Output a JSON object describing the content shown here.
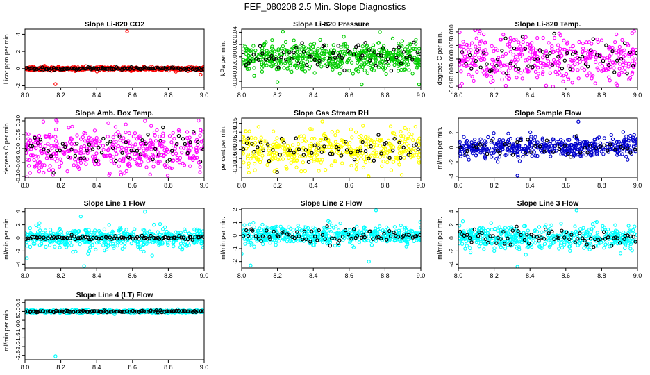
{
  "figure": {
    "title": "FEF_080208  2.5 Min. Slope Diagnostics"
  },
  "chart_data": [
    {
      "type": "scatter",
      "title": "Slope Li-820 CO2",
      "ylabel": "Licor ppm per min.",
      "color": "#ff0000",
      "xlim": [
        8.0,
        9.0
      ],
      "ylim": [
        -2.2,
        4.6
      ],
      "xticks": [
        8.0,
        8.2,
        8.4,
        8.6,
        8.8,
        9.0
      ],
      "xtick_labels": [
        "8.0",
        "8.2",
        "8.4",
        "8.6",
        "8.8",
        "9.0"
      ],
      "yticks": [
        -2,
        0,
        2,
        4
      ],
      "ytick_labels": [
        "-2",
        "0",
        "2",
        "4"
      ],
      "n_points": 450,
      "spread": 0.1,
      "n_black": 110,
      "black_spread": 0.07,
      "outliers": [
        [
          8.57,
          4.35
        ],
        [
          8.17,
          -1.8
        ],
        [
          8.98,
          -0.7
        ]
      ]
    },
    {
      "type": "scatter",
      "title": "Slope Li-820 Pressure",
      "ylabel": "kPa per min.",
      "color": "#00cc00",
      "xlim": [
        8.0,
        9.0
      ],
      "ylim": [
        -0.05,
        0.045
      ],
      "xticks": [
        8.0,
        8.2,
        8.4,
        8.6,
        8.8,
        9.0
      ],
      "xtick_labels": [
        "8.0",
        "8.2",
        "8.4",
        "8.6",
        "8.8",
        "9.0"
      ],
      "yticks": [
        -0.04,
        -0.02,
        0.0,
        0.02,
        0.04
      ],
      "ytick_labels": [
        "-0.04",
        "-0.02",
        "0.00",
        "0.02",
        "0.04"
      ],
      "n_points": 520,
      "spread": 0.012,
      "n_black": 70,
      "black_spread": 0.009,
      "outliers": [
        [
          8.07,
          -0.031
        ],
        [
          8.2,
          -0.041
        ],
        [
          8.67,
          -0.045
        ],
        [
          8.23,
          0.041
        ],
        [
          8.99,
          -0.045
        ]
      ]
    },
    {
      "type": "scatter",
      "title": "Slope Li-820 Temp.",
      "ylabel": "degrees C per min.",
      "color": "#ff00ff",
      "xlim": [
        8.0,
        9.0
      ],
      "ylim": [
        -0.0105,
        0.011
      ],
      "xticks": [
        8.0,
        8.2,
        8.4,
        8.6,
        8.8,
        9.0
      ],
      "xtick_labels": [
        "8.0",
        "8.2",
        "8.4",
        "8.6",
        "8.8",
        "9.0"
      ],
      "yticks": [
        -0.01,
        -0.005,
        0.0,
        0.005,
        0.01
      ],
      "ytick_labels": [
        "-0.010",
        "-0.005",
        "0.000",
        "0.005",
        "0.010"
      ],
      "n_points": 420,
      "spread": 0.0045,
      "n_black": 60,
      "black_spread": 0.0035,
      "outliers": [
        [
          8.12,
          0.0102
        ],
        [
          8.97,
          0.0095
        ],
        [
          8.49,
          -0.0098
        ]
      ]
    },
    {
      "type": "scatter",
      "title": "Slope Amb. Box Temp.",
      "ylabel": "degrees C per min.",
      "color": "#ff00ff",
      "xlim": [
        8.0,
        9.0
      ],
      "ylim": [
        -0.105,
        0.11
      ],
      "xticks": [
        8.0,
        8.2,
        8.4,
        8.6,
        8.8,
        9.0
      ],
      "xtick_labels": [
        "8.0",
        "8.2",
        "8.4",
        "8.6",
        "8.8",
        "9.0"
      ],
      "yticks": [
        -0.1,
        -0.05,
        0.0,
        0.05,
        0.1
      ],
      "ytick_labels": [
        "-0.10",
        "-0.05",
        "0.00",
        "0.05",
        "0.10"
      ],
      "n_points": 430,
      "spread": 0.04,
      "n_black": 60,
      "black_spread": 0.03,
      "outliers": [
        [
          8.67,
          0.1
        ],
        [
          8.47,
          -0.095
        ]
      ]
    },
    {
      "type": "scatter",
      "title": "Slope Gas Stream RH",
      "ylabel": "percent per min.",
      "color": "#ffff00",
      "xlim": [
        8.0,
        9.0
      ],
      "ylim": [
        -0.16,
        0.18
      ],
      "xticks": [
        8.0,
        8.2,
        8.4,
        8.6,
        8.8,
        9.0
      ],
      "xtick_labels": [
        "8.0",
        "8.2",
        "8.4",
        "8.6",
        "8.8",
        "9.0"
      ],
      "yticks": [
        -0.1,
        -0.05,
        0.0,
        0.05,
        0.1,
        0.15
      ],
      "ytick_labels": [
        "-0.10",
        "-0.05",
        "0.00",
        "0.05",
        "0.10",
        "0.15"
      ],
      "n_points": 430,
      "spread": 0.055,
      "n_black": 60,
      "black_spread": 0.045,
      "outliers": [
        [
          8.45,
          0.16
        ],
        [
          8.04,
          -0.13
        ]
      ]
    },
    {
      "type": "scatter",
      "title": "Slope Sample Flow",
      "ylabel": "ml/min per min.",
      "color": "#0000cc",
      "xlim": [
        8.0,
        9.0
      ],
      "ylim": [
        -4.2,
        4.0
      ],
      "xticks": [
        8.0,
        8.2,
        8.4,
        8.6,
        8.8,
        9.0
      ],
      "xtick_labels": [
        "8.0",
        "8.2",
        "8.4",
        "8.6",
        "8.8",
        "9.0"
      ],
      "yticks": [
        -4,
        -2,
        0,
        2
      ],
      "ytick_labels": [
        "-4",
        "-2",
        "0",
        "2"
      ],
      "n_points": 470,
      "spread": 0.75,
      "n_black": 45,
      "black_spread": 0.6,
      "outliers": [
        [
          8.67,
          3.5
        ],
        [
          8.33,
          -3.9
        ],
        [
          8.92,
          2.1
        ]
      ]
    },
    {
      "type": "scatter",
      "title": "Slope Line 1 Flow",
      "ylabel": "ml/min per min.",
      "color": "#00ffff",
      "xlim": [
        8.0,
        9.0
      ],
      "ylim": [
        -4.6,
        4.5
      ],
      "xticks": [
        8.0,
        8.2,
        8.4,
        8.6,
        8.8,
        9.0
      ],
      "xtick_labels": [
        "8.0",
        "8.2",
        "8.4",
        "8.6",
        "8.8",
        "9.0"
      ],
      "yticks": [
        -4,
        -2,
        0,
        2,
        4
      ],
      "ytick_labels": [
        "-4",
        "-2",
        "0",
        "2",
        "4"
      ],
      "n_points": 470,
      "spread": 0.8,
      "n_black": 90,
      "black_spread": 0.15,
      "outliers": [
        [
          8.33,
          -4.3
        ],
        [
          8.67,
          4.0
        ],
        [
          8.72,
          2.0
        ],
        [
          8.71,
          -2.7
        ]
      ]
    },
    {
      "type": "scatter",
      "title": "Slope Line 2 Flow",
      "ylabel": "ml/min per min.",
      "color": "#00ffff",
      "xlim": [
        8.0,
        9.0
      ],
      "ylim": [
        -2.5,
        2.1
      ],
      "xticks": [
        8.0,
        8.2,
        8.4,
        8.6,
        8.8,
        9.0
      ],
      "xtick_labels": [
        "8.0",
        "8.2",
        "8.4",
        "8.6",
        "8.8",
        "9.0"
      ],
      "yticks": [
        -2,
        -1,
        0,
        1,
        2
      ],
      "ytick_labels": [
        "-2",
        "-1",
        "0",
        "1",
        "2"
      ],
      "n_points": 470,
      "spread": 0.35,
      "n_black": 70,
      "black_spread": 0.3,
      "outliers": [
        [
          8.75,
          1.95
        ],
        [
          8.71,
          -2.0
        ],
        [
          8.05,
          -2.3
        ],
        [
          8.0,
          -1.4
        ]
      ]
    },
    {
      "type": "scatter",
      "title": "Slope Line 3 Flow",
      "ylabel": "ml/min per min.",
      "color": "#00ffff",
      "xlim": [
        8.0,
        9.0
      ],
      "ylim": [
        -4.6,
        4.5
      ],
      "xticks": [
        8.0,
        8.2,
        8.4,
        8.6,
        8.8,
        9.0
      ],
      "xtick_labels": [
        "8.0",
        "8.2",
        "8.4",
        "8.6",
        "8.8",
        "9.0"
      ],
      "yticks": [
        -4,
        -2,
        0,
        2,
        4
      ],
      "ytick_labels": [
        "-4",
        "-2",
        "0",
        "2",
        "4"
      ],
      "n_points": 470,
      "spread": 0.9,
      "n_black": 70,
      "black_spread": 0.7,
      "outliers": [
        [
          8.66,
          4.2
        ],
        [
          8.33,
          -4.4
        ],
        [
          8.75,
          2.1
        ]
      ]
    },
    {
      "type": "scatter",
      "title": "Slope Line 4 (LT) Flow",
      "ylabel": "ml/min per min.",
      "color": "#00ffff",
      "xlim": [
        8.0,
        9.0
      ],
      "ylim": [
        -2.75,
        0.65
      ],
      "xticks": [
        8.0,
        8.2,
        8.4,
        8.6,
        8.8,
        9.0
      ],
      "xtick_labels": [
        "8.0",
        "8.2",
        "8.4",
        "8.6",
        "8.8",
        "9.0"
      ],
      "yticks": [
        -2.5,
        -2.0,
        -1.5,
        -1.0,
        -0.5,
        0.0,
        0.5
      ],
      "ytick_labels": [
        "-2.5",
        "-2.0",
        "-1.5",
        "-1.0",
        "-0.5",
        "0.0",
        "0.5"
      ],
      "n_points": 450,
      "spread": 0.04,
      "n_black": 100,
      "black_spread": 0.03,
      "outliers": [
        [
          8.17,
          -2.55
        ],
        [
          8.5,
          -0.15
        ]
      ]
    }
  ]
}
